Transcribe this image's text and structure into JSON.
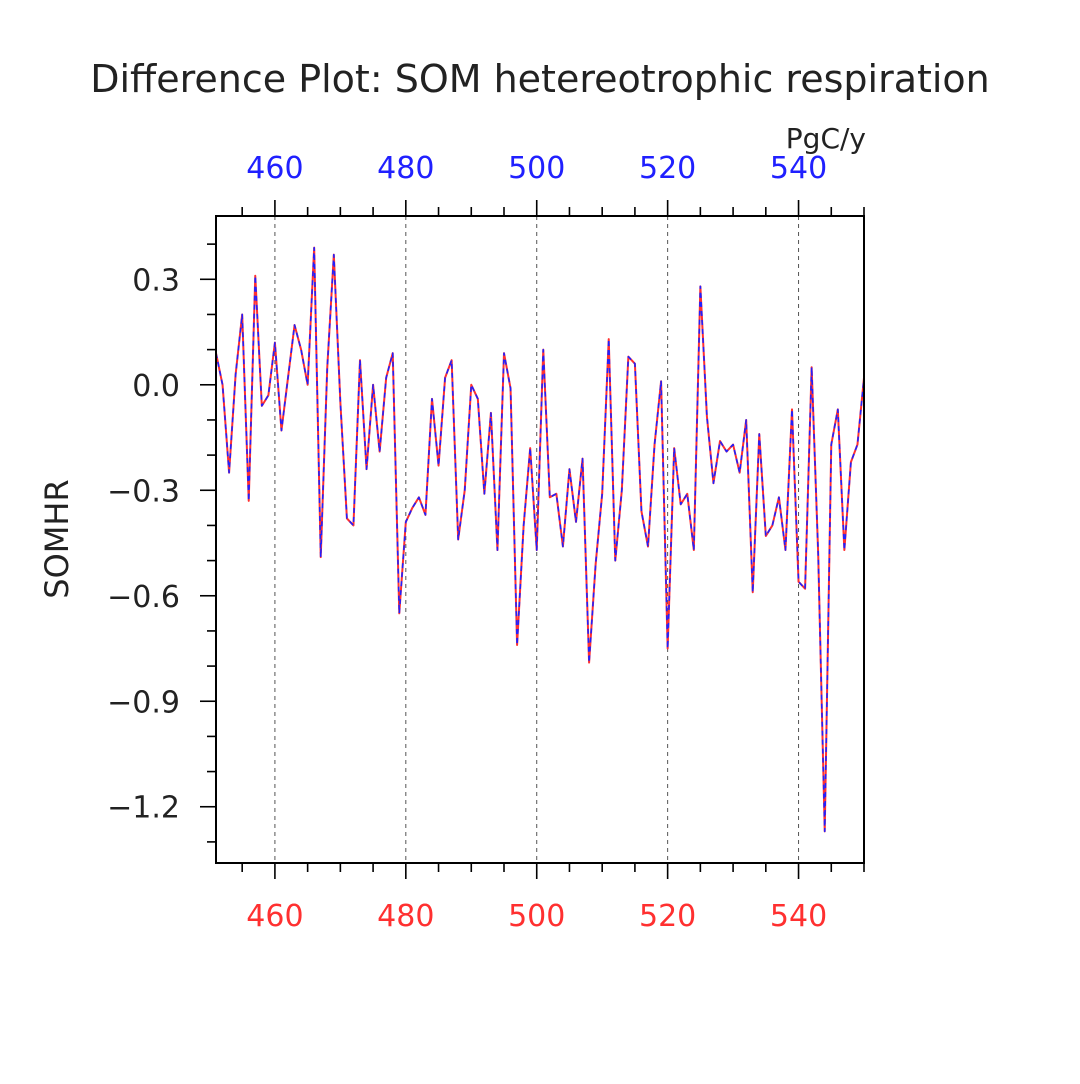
{
  "chart_data": {
    "type": "line",
    "title": "Difference Plot: SOM hetereotrophic respiration",
    "units": "PgC/y",
    "ylabel": "SOMHR",
    "xlabel": "",
    "xlim": [
      451,
      550
    ],
    "ylim": [
      -1.36,
      0.48
    ],
    "x_ticks": [
      460,
      480,
      500,
      520,
      540
    ],
    "y_ticks": [
      0.3,
      0.0,
      -0.3,
      -0.6,
      -0.9,
      -1.2
    ],
    "y_tick_labels": [
      "0.3",
      "0.0",
      "−0.3",
      "−0.6",
      "−0.9",
      "−1.2"
    ],
    "grid": "vertical dashed at major x ticks",
    "colors": {
      "series_a": "#ff3030",
      "series_b": "#2020ff",
      "bottom_tick_labels": "#ff3030",
      "top_tick_labels": "#2020ff",
      "axes": "#000000"
    },
    "x": [
      451,
      452,
      453,
      454,
      455,
      456,
      457,
      458,
      459,
      460,
      461,
      462,
      463,
      464,
      465,
      466,
      467,
      468,
      469,
      470,
      471,
      472,
      473,
      474,
      475,
      476,
      477,
      478,
      479,
      480,
      481,
      482,
      483,
      484,
      485,
      486,
      487,
      488,
      489,
      490,
      491,
      492,
      493,
      494,
      495,
      496,
      497,
      498,
      499,
      500,
      501,
      502,
      503,
      504,
      505,
      506,
      507,
      508,
      509,
      510,
      511,
      512,
      513,
      514,
      515,
      516,
      517,
      518,
      519,
      520,
      521,
      522,
      523,
      524,
      525,
      526,
      527,
      528,
      529,
      530,
      531,
      532,
      533,
      534,
      535,
      536,
      537,
      538,
      539,
      540,
      541,
      542,
      543,
      544,
      545,
      546,
      547,
      548,
      549,
      550
    ],
    "series": [
      {
        "values": [
          0.09,
          0.0,
          -0.25,
          0.03,
          0.2,
          -0.33,
          0.31,
          -0.06,
          -0.03,
          0.12,
          -0.13,
          0.02,
          0.17,
          0.1,
          0.0,
          0.39,
          -0.49,
          0.05,
          0.37,
          -0.05,
          -0.38,
          -0.4,
          0.07,
          -0.24,
          -0.0,
          -0.19,
          0.02,
          0.09,
          -0.65,
          -0.39,
          -0.35,
          -0.32,
          -0.37,
          -0.04,
          -0.23,
          0.02,
          0.07,
          -0.44,
          -0.3,
          -0.0,
          -0.04,
          -0.31,
          -0.08,
          -0.47,
          0.09,
          -0.01,
          -0.74,
          -0.4,
          -0.18,
          -0.47,
          0.1,
          -0.32,
          -0.31,
          -0.46,
          -0.24,
          -0.39,
          -0.21,
          -0.79,
          -0.51,
          -0.31,
          0.13,
          -0.5,
          -0.3,
          0.08,
          0.06,
          -0.36,
          -0.46,
          -0.17,
          0.01,
          -0.75,
          -0.18,
          -0.34,
          -0.31,
          -0.47,
          0.28,
          -0.09,
          -0.28,
          -0.16,
          -0.19,
          -0.17,
          -0.25,
          -0.1,
          -0.59,
          -0.14,
          -0.43,
          -0.4,
          -0.32,
          -0.47,
          -0.07,
          -0.56,
          -0.58,
          0.05,
          -0.48,
          -1.27,
          -0.17,
          -0.07,
          -0.47,
          -0.22,
          -0.17,
          0.02
        ]
      }
    ]
  }
}
